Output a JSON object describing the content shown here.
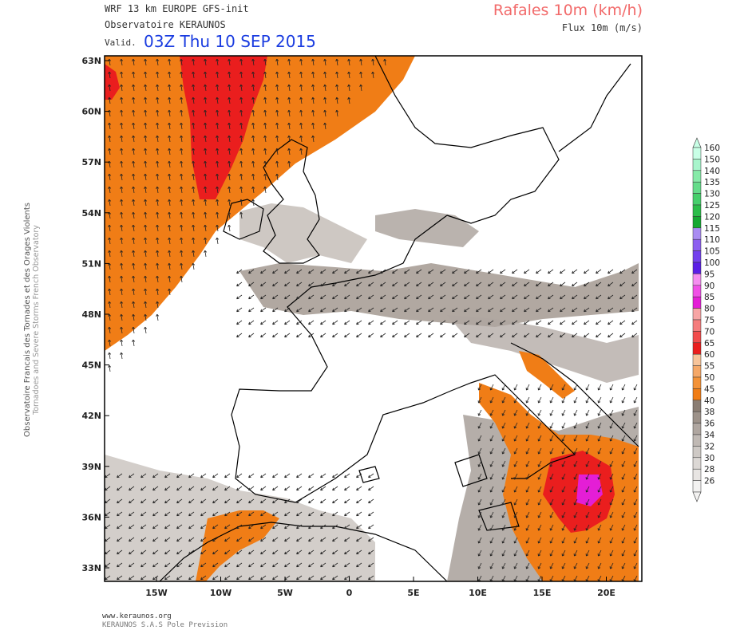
{
  "header": {
    "model": "WRF 13 km EUROPE  GFS-init",
    "observatory": "Observatoire KERAUNOS",
    "valid_label": "Valid.",
    "valid_time": "03Z Thu 10 SEP 2015",
    "field": "Rafales 10m (km/h)",
    "flux": "Flux 10m (m/s)"
  },
  "side_credit": {
    "line1": "Observatoire Francais des Tornades et des Orages Violents",
    "line2": "Tornadoes and Severe Storms French Observatory"
  },
  "footer": {
    "url": "www.keraunos.org",
    "company": "KERAUNOS S.A.S Pole Prevision"
  },
  "map": {
    "lat_labels": [
      "63N",
      "60N",
      "57N",
      "54N",
      "51N",
      "48N",
      "45N",
      "42N",
      "39N",
      "36N",
      "33N"
    ],
    "lon_labels": [
      "15W",
      "10W",
      "5W",
      "0",
      "5E",
      "10E",
      "15E",
      "20E"
    ]
  },
  "legend": {
    "levels": [
      {
        "label": "160",
        "color": "#c8ffe6"
      },
      {
        "label": "150",
        "color": "#a8f5cc"
      },
      {
        "label": "140",
        "color": "#86eaa8"
      },
      {
        "label": "135",
        "color": "#64dc8a"
      },
      {
        "label": "130",
        "color": "#46cf6c"
      },
      {
        "label": "125",
        "color": "#2bbd4a"
      },
      {
        "label": "120",
        "color": "#15a832"
      },
      {
        "label": "115",
        "color": "#a98cf2"
      },
      {
        "label": "110",
        "color": "#8c5ff0"
      },
      {
        "label": "105",
        "color": "#7340ee"
      },
      {
        "label": "100",
        "color": "#5a1ee6"
      },
      {
        "label": "95",
        "color": "#f58ef0"
      },
      {
        "label": "90",
        "color": "#f050e6"
      },
      {
        "label": "85",
        "color": "#e41ed6"
      },
      {
        "label": "80",
        "color": "#f7a5a5"
      },
      {
        "label": "75",
        "color": "#f57c7c"
      },
      {
        "label": "70",
        "color": "#f24b4b"
      },
      {
        "label": "65",
        "color": "#ea1e1e"
      },
      {
        "label": "60",
        "color": "#f7c49a"
      },
      {
        "label": "55",
        "color": "#f5a868"
      },
      {
        "label": "50",
        "color": "#f39238"
      },
      {
        "label": "45",
        "color": "#f07d16"
      },
      {
        "label": "40",
        "color": "#8a7d73"
      },
      {
        "label": "38",
        "color": "#9d928a"
      },
      {
        "label": "36",
        "color": "#afa6a0"
      },
      {
        "label": "34",
        "color": "#c0b9b4"
      },
      {
        "label": "32",
        "color": "#cec9c5"
      },
      {
        "label": "30",
        "color": "#dcd8d5"
      },
      {
        "label": "28",
        "color": "#e8e5e3"
      },
      {
        "label": "26",
        "color": "#f3f2f1"
      }
    ]
  }
}
